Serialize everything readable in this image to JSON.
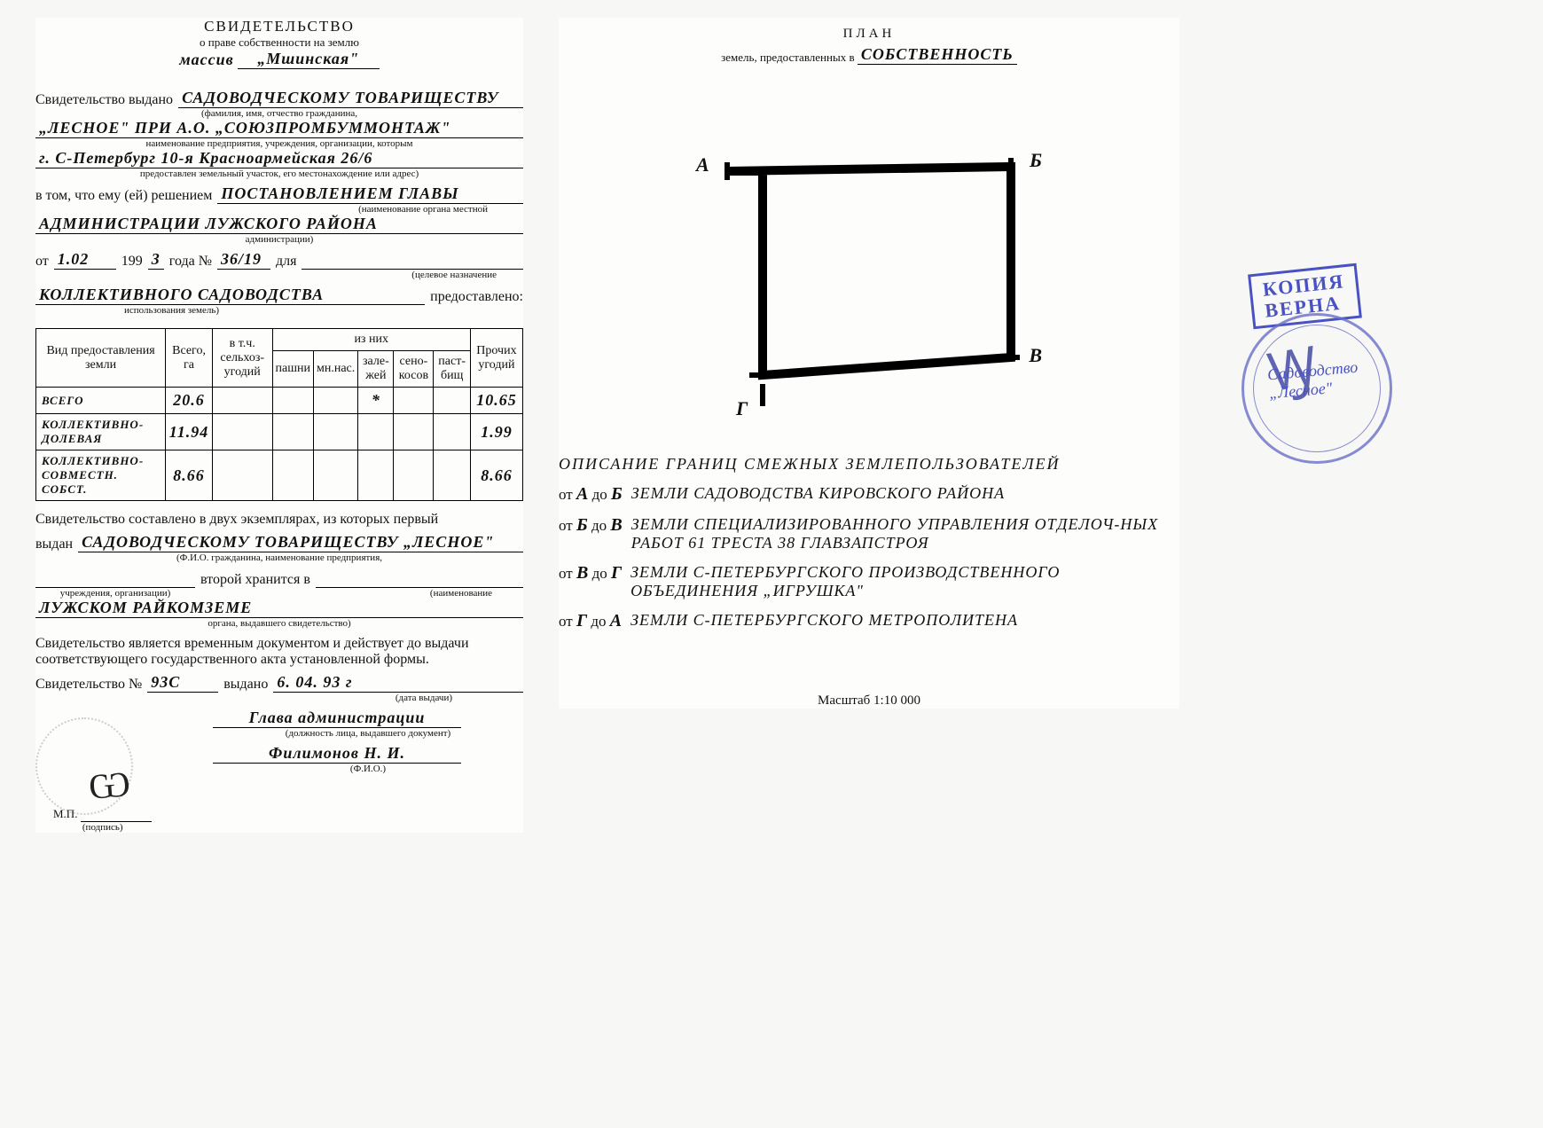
{
  "left": {
    "title": "СВИДЕТЕЛЬСТВО",
    "subtitle": "о праве собственности на землю",
    "massiv_label": "массив",
    "massiv": "„Мшинская\"",
    "issued_label": "Свидетельство выдано",
    "issued_to_1": "САДОВОДЧЕСКОМУ ТОВАРИЩЕСТВУ",
    "sub_fio": "(фамилия, имя, отчество гражданина,",
    "issued_to_2": "„ЛЕСНОЕ\"  ПРИ  А.О. „СОЮЗПРОМБУММОНТАЖ\"",
    "sub_org": "наименование предприятия, учреждения, организации, которым",
    "address": "г. С-Петербург  10-я  Красноармейская  26/6",
    "sub_addr": "предоставлен земельный участок, его местонахождение или адрес)",
    "decision_label": "в том, что ему (ей) решением",
    "decision_1": "ПОСТАНОВЛЕНИЕМ  ГЛАВЫ",
    "sub_organ": "(наименование органа местной",
    "decision_2": "АДМИНИСТРАЦИИ  ЛУЖСКОГО  РАЙОНА",
    "sub_admin": "администрации)",
    "ot": "от",
    "date": "1.02",
    "year_pre": "199",
    "year_d": "3",
    "year_post": "года  №",
    "doc_no": "36/19",
    "dlya": "для",
    "sub_purpose": "(целевое назначение",
    "purpose": "КОЛЛЕКТИВНОГО  САДОВОДСТВА",
    "provided": "предоставлено:",
    "sub_use": "использования земель)",
    "table": {
      "headers": {
        "vid": "Вид предоставления земли",
        "total": "Всего, га",
        "agr": "в т.ч. сельхоз-угодий",
        "of": "из них",
        "pash": "пашни",
        "mnog": "мн.нас.",
        "zal": "зале-жей",
        "seno": "сено-косов",
        "past": "паст-бищ",
        "other": "Прочих угодий"
      },
      "rows": [
        {
          "label": "ВСЕГО",
          "total": "20.6",
          "agr": "",
          "pash": "",
          "mnog": "",
          "zal": "*",
          "seno": "",
          "past": "",
          "other": "10.65"
        },
        {
          "label": "КОЛЛЕКТИВНО-ДОЛЕВАЯ",
          "total": "11.94",
          "agr": "",
          "pash": "",
          "mnog": "",
          "zal": "",
          "seno": "",
          "past": "",
          "other": "1.99"
        },
        {
          "label": "КОЛЛЕКТИВНО-СОВМЕСТН. СОБСТ.",
          "total": "8.66",
          "agr": "",
          "pash": "",
          "mnog": "",
          "zal": "",
          "seno": "",
          "past": "",
          "other": "8.66"
        }
      ]
    },
    "two_copies": "Свидетельство составлено в двух экземплярах, из которых первый",
    "vydan": "выдан",
    "copy1": "САДОВОДЧЕСКОМУ  ТОВАРИЩЕСТВУ „ЛЕСНОЕ\"",
    "sub_copy1": "(Ф.И.О. гражданина, наименование предприятия,",
    "second_label": "второй хранится в",
    "sub_org2": "учреждения, организации)",
    "sub_name2": "(наименование",
    "copy2": "ЛУЖСКОМ  РАЙКОМЗЕМЕ",
    "sub_organ2": "органа, выдавшего свидетельство)",
    "temp": "Свидетельство является временным документом и действует до выдачи соответствующего государственного акта установленной формы.",
    "cert_no_label": "Свидетельство №",
    "cert_no": "93С",
    "issued_on_label": "выдано",
    "issued_on": "6. 04. 93 г",
    "sub_date": "(дата выдачи)",
    "chief": "Глава  администрации",
    "sub_post": "(должность лица, выдавшего документ)",
    "signer": "Филимонов  Н. И.",
    "sub_fio2": "(Ф.И.О.)",
    "mp": "М.П.",
    "sub_sign": "(подпись)"
  },
  "right": {
    "title": "ПЛАН",
    "subtitle_pre": "земель, предоставленных в",
    "subtitle_val": "СОБСТВЕННОСТЬ",
    "nodes": {
      "A": "А",
      "B": "Б",
      "V": "В",
      "G": "Г"
    },
    "stamp_box_1": "КОПИЯ",
    "stamp_box_2": "ВЕРНА",
    "stamp_inner_1": "Садоводство",
    "stamp_inner_2": "„Лесное\"",
    "desc_title": "ОПИСАНИЕ  ГРАНИЦ  СМЕЖНЫХ  ЗЕМЛЕПОЛЬЗОВАТЕЛЕЙ",
    "borders": [
      {
        "from": "А",
        "to": "Б",
        "text": "ЗЕМЛИ  САДОВОДСТВА  КИРОВСКОГО  РАЙОНА"
      },
      {
        "from": "Б",
        "to": "В",
        "text": "ЗЕМЛИ  СПЕЦИАЛИЗИРОВАННОГО УПРАВЛЕНИЯ ОТДЕЛОЧ-НЫХ  РАБОТ  61  ТРЕСТА  38  ГЛАВЗАПСТРОЯ"
      },
      {
        "from": "В",
        "to": "Г",
        "text": "ЗЕМЛИ  С-ПЕТЕРБУРГСКОГО  ПРОИЗВОДСТВЕННОГО ОБЪЕДИНЕНИЯ  „ИГРУШКА\""
      },
      {
        "from": "Г",
        "to": "А",
        "text": "ЗЕМЛИ  С-ПЕТЕРБУРГСКОГО  МЕТРОПОЛИТЕНА"
      }
    ],
    "ot": "от",
    "do": "до",
    "scale": "Масштаб 1:10 000"
  },
  "colors": {
    "ink": "#111111",
    "stamp": "#5a62c8"
  }
}
